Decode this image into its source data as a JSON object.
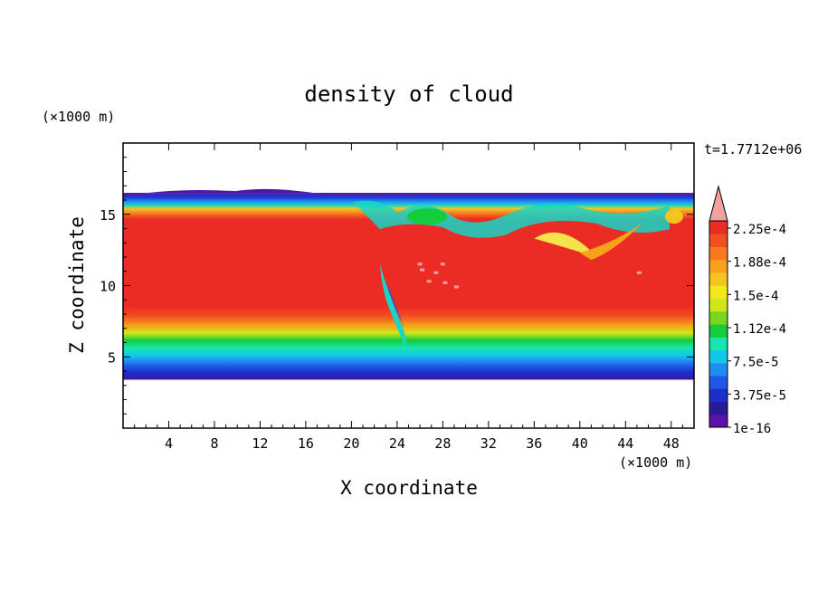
{
  "chart_data": {
    "type": "heatmap",
    "title": "density of cloud",
    "xlabel": "X coordinate",
    "ylabel": "Z coordinate",
    "x_unit": "(×1000 m)",
    "y_unit": "(×1000 m)",
    "time_label": "t=1.7712e+06",
    "xlim": [
      0,
      50
    ],
    "ylim": [
      0,
      20
    ],
    "x_ticks": [
      4,
      8,
      12,
      16,
      20,
      24,
      28,
      32,
      36,
      40,
      44,
      48
    ],
    "y_ticks": [
      5,
      10,
      15
    ],
    "colorbar": {
      "levels": [
        "1e-16",
        "3.75e-5",
        "7.5e-5",
        "1.12e-4",
        "1.5e-4",
        "1.88e-4",
        "2.25e-4"
      ],
      "colors": [
        "#5a12a8",
        "#2a1a9a",
        "#1c2fc8",
        "#1f57e8",
        "#1f8ef2",
        "#12c8e8",
        "#16e6b0",
        "#14cc3c",
        "#7ad61c",
        "#cfe61a",
        "#f2e81a",
        "#f6c41e",
        "#f8a11c",
        "#f77a1e",
        "#f24f20",
        "#ea2c24"
      ],
      "extend_color": "#f2a0a0"
    },
    "field_description": {
      "cloud_base_km": 3.4,
      "cloud_top_km": 16.5,
      "core_range_km": [
        8.5,
        14.5
      ],
      "core_value": "2.25e-4"
    }
  }
}
